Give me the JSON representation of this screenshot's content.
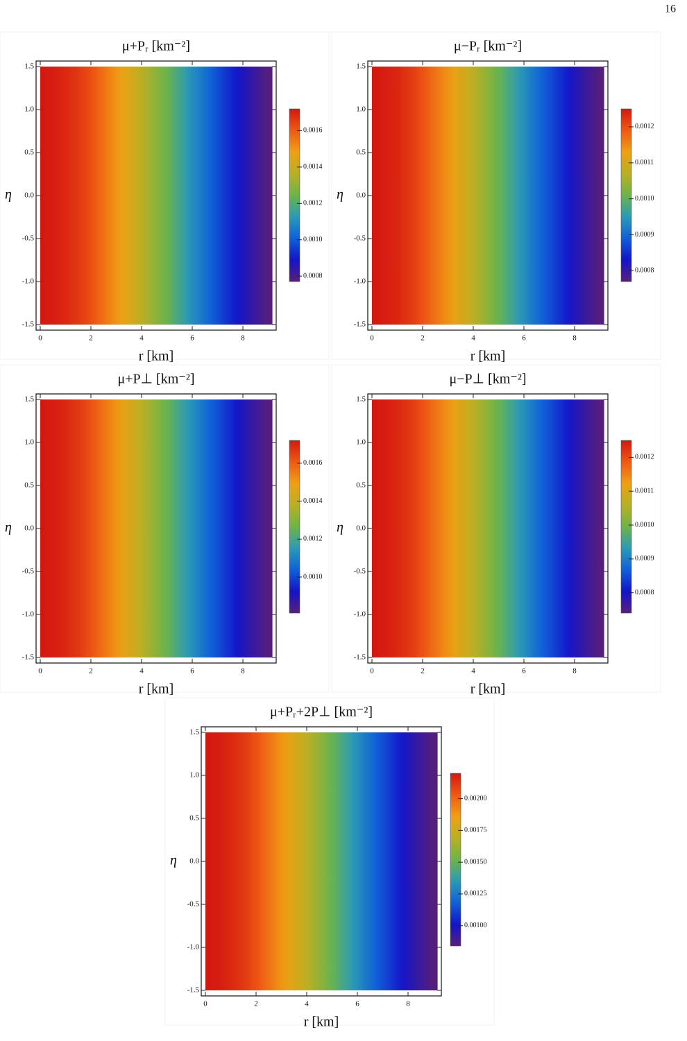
{
  "page_number": "16",
  "chart_data": [
    {
      "type": "heatmap",
      "title": "μ+Pᵣ [km⁻²]",
      "x_label": "r [km]",
      "y_label": "η",
      "x": [
        0,
        0.5,
        1,
        1.5,
        2,
        2.5,
        3,
        3.5,
        4,
        4.5,
        5,
        5.5,
        6,
        6.5,
        7,
        7.5,
        8,
        8.5,
        9
      ],
      "values": [
        0.00172,
        0.00171,
        0.00169,
        0.00166,
        0.00162,
        0.00156,
        0.0015,
        0.00144,
        0.00137,
        0.0013,
        0.00124,
        0.00117,
        0.0011,
        0.00104,
        0.00098,
        0.00092,
        0.00087,
        0.00082,
        0.00078
      ],
      "xlim": [
        0,
        9.15
      ],
      "ylim": [
        -1.5,
        1.5
      ],
      "xticks": [
        0,
        2,
        4,
        6,
        8
      ],
      "yticks": [
        1.5,
        {
          "value": 1,
          "label": "1.0"
        },
        0.5,
        {
          "value": 0,
          "label": "0.0"
        },
        -0.5,
        {
          "value": -1,
          "label": "-1.0"
        },
        -1.5
      ],
      "clim": [
        0.00077,
        0.00172
      ],
      "cticks": [
        0.0016,
        0.0014,
        0.0012,
        {
          "value": 0.001,
          "label": "0.0010"
        },
        0.0008
      ],
      "colorscale": [
        "#5a1f78",
        "#1414c8",
        "#1060d8",
        "#2a9ab8",
        "#6cb44a",
        "#b8b024",
        "#eea014",
        "#ee5a12",
        "#d41810"
      ]
    },
    {
      "type": "heatmap",
      "title": "μ−Pᵣ [km⁻²]",
      "x_label": "r [km]",
      "y_label": "η",
      "x": [
        0,
        0.5,
        1,
        1.5,
        2,
        2.5,
        3,
        3.5,
        4,
        4.5,
        5,
        5.5,
        6,
        6.5,
        7,
        7.5,
        8,
        8.5,
        9
      ],
      "values": [
        0.00125,
        0.001245,
        0.001236,
        0.001221,
        0.001197,
        0.001168,
        0.00114,
        0.001106,
        0.001072,
        0.001039,
        0.001005,
        0.000972,
        0.000938,
        0.000904,
        0.000876,
        0.000847,
        0.000818,
        0.000794,
        0.000775
      ],
      "xlim": [
        0,
        9.15
      ],
      "ylim": [
        -1.5,
        1.5
      ],
      "xticks": [
        0,
        2,
        4,
        6,
        8
      ],
      "yticks": [
        1.5,
        {
          "value": 1,
          "label": "1.0"
        },
        0.5,
        {
          "value": 0,
          "label": "0.0"
        },
        -0.5,
        {
          "value": -1,
          "label": "-1.0"
        },
        -1.5
      ],
      "clim": [
        0.00077,
        0.00125
      ],
      "cticks": [
        0.0012,
        0.0011,
        {
          "value": 0.001,
          "label": "0.0010"
        },
        0.0009,
        0.0008
      ],
      "colorscale": [
        "#5a1f78",
        "#1414c8",
        "#1060d8",
        "#2a9ab8",
        "#6cb44a",
        "#b8b024",
        "#eea014",
        "#ee5a12",
        "#d41810"
      ]
    },
    {
      "type": "heatmap",
      "title": "μ+P⊥ [km⁻²]",
      "x_label": "r [km]",
      "y_label": "η",
      "x": [
        0,
        0.5,
        1,
        1.5,
        2,
        2.5,
        3,
        3.5,
        4,
        4.5,
        5,
        5.5,
        6,
        6.5,
        7,
        7.5,
        8,
        8.5,
        9
      ],
      "values": [
        0.00172,
        0.001711,
        0.001693,
        0.001665,
        0.00162,
        0.001565,
        0.001511,
        0.001447,
        0.001383,
        0.00132,
        0.001256,
        0.001192,
        0.001129,
        0.001065,
        0.00101,
        0.000956,
        0.000901,
        0.000856,
        0.000819
      ],
      "xlim": [
        0,
        9.15
      ],
      "ylim": [
        -1.5,
        1.5
      ],
      "xticks": [
        0,
        2,
        4,
        6,
        8
      ],
      "yticks": [
        1.5,
        {
          "value": 1,
          "label": "1.0"
        },
        0.5,
        {
          "value": 0,
          "label": "0.0"
        },
        -0.5,
        {
          "value": -1,
          "label": "-1.0"
        },
        -1.5
      ],
      "clim": [
        0.00081,
        0.00172
      ],
      "cticks": [
        0.0016,
        0.0014,
        0.0012,
        {
          "value": 0.001,
          "label": "0.0010"
        }
      ],
      "colorscale": [
        "#5a1f78",
        "#1414c8",
        "#1060d8",
        "#2a9ab8",
        "#6cb44a",
        "#b8b024",
        "#eea014",
        "#ee5a12",
        "#d41810"
      ]
    },
    {
      "type": "heatmap",
      "title": "μ−P⊥ [km⁻²]",
      "x_label": "r [km]",
      "y_label": "η",
      "x": [
        0,
        0.5,
        1,
        1.5,
        2,
        2.5,
        3,
        3.5,
        4,
        4.5,
        5,
        5.5,
        6,
        6.5,
        7,
        7.5,
        8,
        8.5,
        9
      ],
      "values": [
        0.00125,
        0.001245,
        0.001235,
        0.001219,
        0.001194,
        0.001163,
        0.001133,
        0.001097,
        0.001061,
        0.001026,
        0.00099,
        0.000954,
        0.000919,
        0.000883,
        0.000852,
        0.000822,
        0.000791,
        0.000766,
        0.000745
      ],
      "xlim": [
        0,
        9.15
      ],
      "ylim": [
        -1.5,
        1.5
      ],
      "xticks": [
        0,
        2,
        4,
        6,
        8
      ],
      "yticks": [
        1.5,
        {
          "value": 1,
          "label": "1.0"
        },
        0.5,
        {
          "value": 0,
          "label": "0.0"
        },
        -0.5,
        {
          "value": -1,
          "label": "-1.0"
        },
        -1.5
      ],
      "clim": [
        0.00074,
        0.00125
      ],
      "cticks": [
        0.0012,
        0.0011,
        {
          "value": 0.001,
          "label": "0.0010"
        },
        0.0009,
        0.0008
      ],
      "colorscale": [
        "#5a1f78",
        "#1414c8",
        "#1060d8",
        "#2a9ab8",
        "#6cb44a",
        "#b8b024",
        "#eea014",
        "#ee5a12",
        "#d41810"
      ]
    },
    {
      "type": "heatmap",
      "title": "μ+Pᵣ+2P⊥ [km⁻²]",
      "x_label": "r [km]",
      "y_label": "η",
      "x": [
        0,
        0.5,
        1,
        1.5,
        2,
        2.5,
        3,
        3.5,
        4,
        4.5,
        5,
        5.5,
        6,
        6.5,
        7,
        7.5,
        8,
        8.5,
        9
      ],
      "values": [
        0.0022,
        0.002186,
        0.002159,
        0.002118,
        0.00205,
        0.001969,
        0.001887,
        0.001792,
        0.001697,
        0.001602,
        0.001506,
        0.001411,
        0.001316,
        0.001221,
        0.001139,
        0.001058,
        0.000976,
        0.000908,
        0.000854
      ],
      "xlim": [
        0,
        9.15
      ],
      "ylim": [
        -1.5,
        1.5
      ],
      "xticks": [
        0,
        2,
        4,
        6,
        8
      ],
      "yticks": [
        1.5,
        {
          "value": 1,
          "label": "1.0"
        },
        0.5,
        {
          "value": 0,
          "label": "0.0"
        },
        -0.5,
        {
          "value": -1,
          "label": "-1.0"
        },
        -1.5
      ],
      "clim": [
        0.00084,
        0.0022
      ],
      "cticks": [
        {
          "value": 0.002,
          "label": "0.00200"
        },
        0.00175,
        {
          "value": 0.0015,
          "label": "0.00150"
        },
        0.00125,
        {
          "value": 0.001,
          "label": "0.00100"
        }
      ],
      "colorscale": [
        "#5a1f78",
        "#1414c8",
        "#1060d8",
        "#2a9ab8",
        "#6cb44a",
        "#b8b024",
        "#eea014",
        "#ee5a12",
        "#d41810"
      ]
    }
  ]
}
